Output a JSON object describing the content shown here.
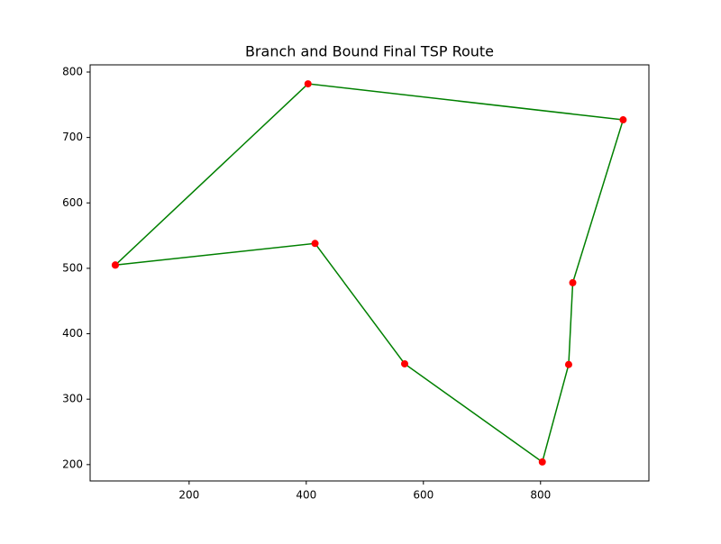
{
  "chart_data": {
    "type": "line",
    "title": "Branch and Bound Final TSP Route",
    "x": [
      74,
      403,
      941,
      855,
      848,
      803,
      568,
      415,
      74
    ],
    "values": [
      505,
      782,
      727,
      478,
      353,
      204,
      354,
      538,
      505
    ],
    "color": "green",
    "marker_color": "red",
    "xlim": [
      31,
      985
    ],
    "ylim": [
      175,
      811
    ],
    "xticks": [
      200,
      400,
      600,
      800
    ],
    "yticks": [
      200,
      300,
      400,
      500,
      600,
      700,
      800
    ],
    "grid": false
  }
}
